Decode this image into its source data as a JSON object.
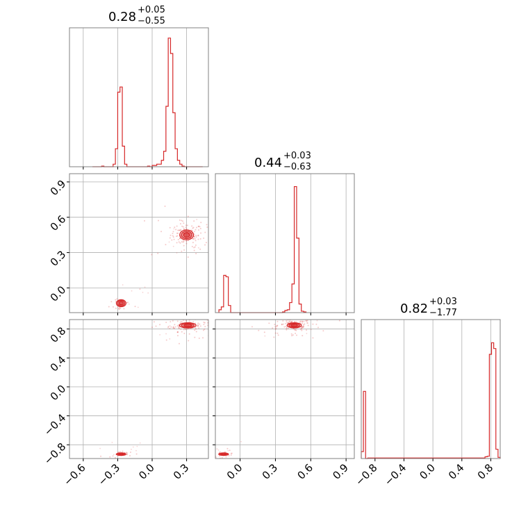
{
  "chart_data": {
    "type": "corner",
    "color": "#d62728",
    "grid": true,
    "parameters": [
      {
        "title": "0.28",
        "upper": "+0.05",
        "lower": "−0.55",
        "range": [
          -0.72,
          0.49
        ]
      },
      {
        "title": "0.44",
        "upper": "+0.03",
        "lower": "−0.63",
        "range": [
          -0.21,
          0.97
        ]
      },
      {
        "title": "0.82",
        "upper": "+0.03",
        "lower": "−1.77",
        "range": [
          -0.99,
          0.93
        ]
      }
    ],
    "ticks": {
      "x0": [
        -0.6,
        -0.3,
        0.0,
        0.3
      ],
      "x0_labels": [
        "−0.6",
        "−0.3",
        "0.0",
        "0.3"
      ],
      "x1": [
        0.0,
        0.3,
        0.6,
        0.9
      ],
      "x1_labels": [
        "0.0",
        "0.3",
        "0.6",
        "0.9"
      ],
      "x2": [
        -0.8,
        -0.4,
        0.0,
        0.4,
        0.8
      ],
      "x2_labels": [
        "−0.8",
        "−0.4",
        "0.0",
        "0.4",
        "0.8"
      ],
      "y1": [
        0.0,
        0.3,
        0.6,
        0.9
      ],
      "y1_labels": [
        "0.0",
        "0.3",
        "0.6",
        "0.9"
      ],
      "y2": [
        -0.8,
        -0.4,
        0.0,
        0.4,
        0.8
      ],
      "y2_labels": [
        "−0.8",
        "−0.4",
        "0.0",
        "0.4",
        "0.8"
      ]
    },
    "histograms": [
      {
        "param": 0,
        "bin_edges": [
          -0.52,
          -0.5,
          -0.48,
          -0.46,
          -0.44,
          -0.42,
          -0.4,
          -0.38,
          -0.36,
          -0.34,
          -0.32,
          -0.3,
          -0.28,
          -0.26,
          -0.24,
          -0.22,
          -0.2,
          -0.18,
          -0.16,
          -0.14,
          -0.12,
          -0.1,
          -0.08,
          -0.06,
          -0.04,
          -0.02,
          0.0,
          0.02,
          0.04,
          0.06,
          0.08,
          0.1,
          0.12,
          0.14,
          0.16,
          0.18,
          0.2,
          0.22,
          0.24,
          0.26,
          0.28,
          0.3,
          0.32,
          0.34,
          0.36,
          0.38,
          0.4,
          0.42,
          0.44
        ],
        "counts": [
          0,
          0,
          0,
          0,
          0.005,
          0,
          0,
          0,
          0,
          0.02,
          0.14,
          0.58,
          0.62,
          0.16,
          0.02,
          0,
          0,
          0,
          0,
          0,
          0,
          0,
          0,
          0,
          0.005,
          0,
          0.01,
          0.01,
          0.02,
          0.02,
          0.05,
          0.12,
          0.47,
          1.0,
          0.88,
          0.42,
          0.14,
          0.05,
          0.02,
          0.005,
          0,
          0,
          0,
          0,
          0,
          0,
          0,
          0
        ],
        "ymax": 1.08
      },
      {
        "param": 1,
        "bin_edges": [
          -0.18,
          -0.16,
          -0.14,
          -0.12,
          -0.1,
          -0.08,
          0.36,
          0.38,
          0.4,
          0.42,
          0.44,
          0.46,
          0.48,
          0.5,
          0.52,
          0.54,
          0.56
        ],
        "counts": [
          0.02,
          0.04,
          0.26,
          0.25,
          0.05,
          0.0,
          0.005,
          0.015,
          0.02,
          0.07,
          0.2,
          0.88,
          0.52,
          0.06,
          0.01,
          0.005
        ],
        "ymax": 0.97
      },
      {
        "param": 2,
        "bin_edges": [
          -0.99,
          -0.96,
          -0.93,
          -0.9,
          0.69,
          0.72,
          0.75,
          0.78,
          0.81,
          0.84,
          0.87,
          0.9,
          0.93
        ],
        "counts": [
          0.06,
          0.58,
          0.0,
          0.005,
          0.005,
          0.015,
          0.02,
          0.9,
          1.0,
          0.95,
          0.08,
          0.01
        ],
        "ymax": 1.2
      }
    ],
    "scatter_panels": [
      {
        "x": 0,
        "y": 1,
        "clusters": [
          {
            "cx": 0.3,
            "cy": 0.45,
            "rx": 0.05,
            "ry": 0.035
          },
          {
            "cx": -0.27,
            "cy": -0.13,
            "rx": 0.035,
            "ry": 0.025
          }
        ]
      },
      {
        "x": 0,
        "y": 2,
        "clusters": [
          {
            "cx": 0.31,
            "cy": 0.85,
            "rx": 0.06,
            "ry": 0.03
          },
          {
            "cx": -0.27,
            "cy": -0.93,
            "rx": 0.035,
            "ry": 0.015
          }
        ]
      },
      {
        "x": 1,
        "y": 2,
        "clusters": [
          {
            "cx": 0.46,
            "cy": 0.85,
            "rx": 0.05,
            "ry": 0.03
          },
          {
            "cx": -0.14,
            "cy": -0.93,
            "rx": 0.035,
            "ry": 0.015
          }
        ]
      }
    ]
  }
}
